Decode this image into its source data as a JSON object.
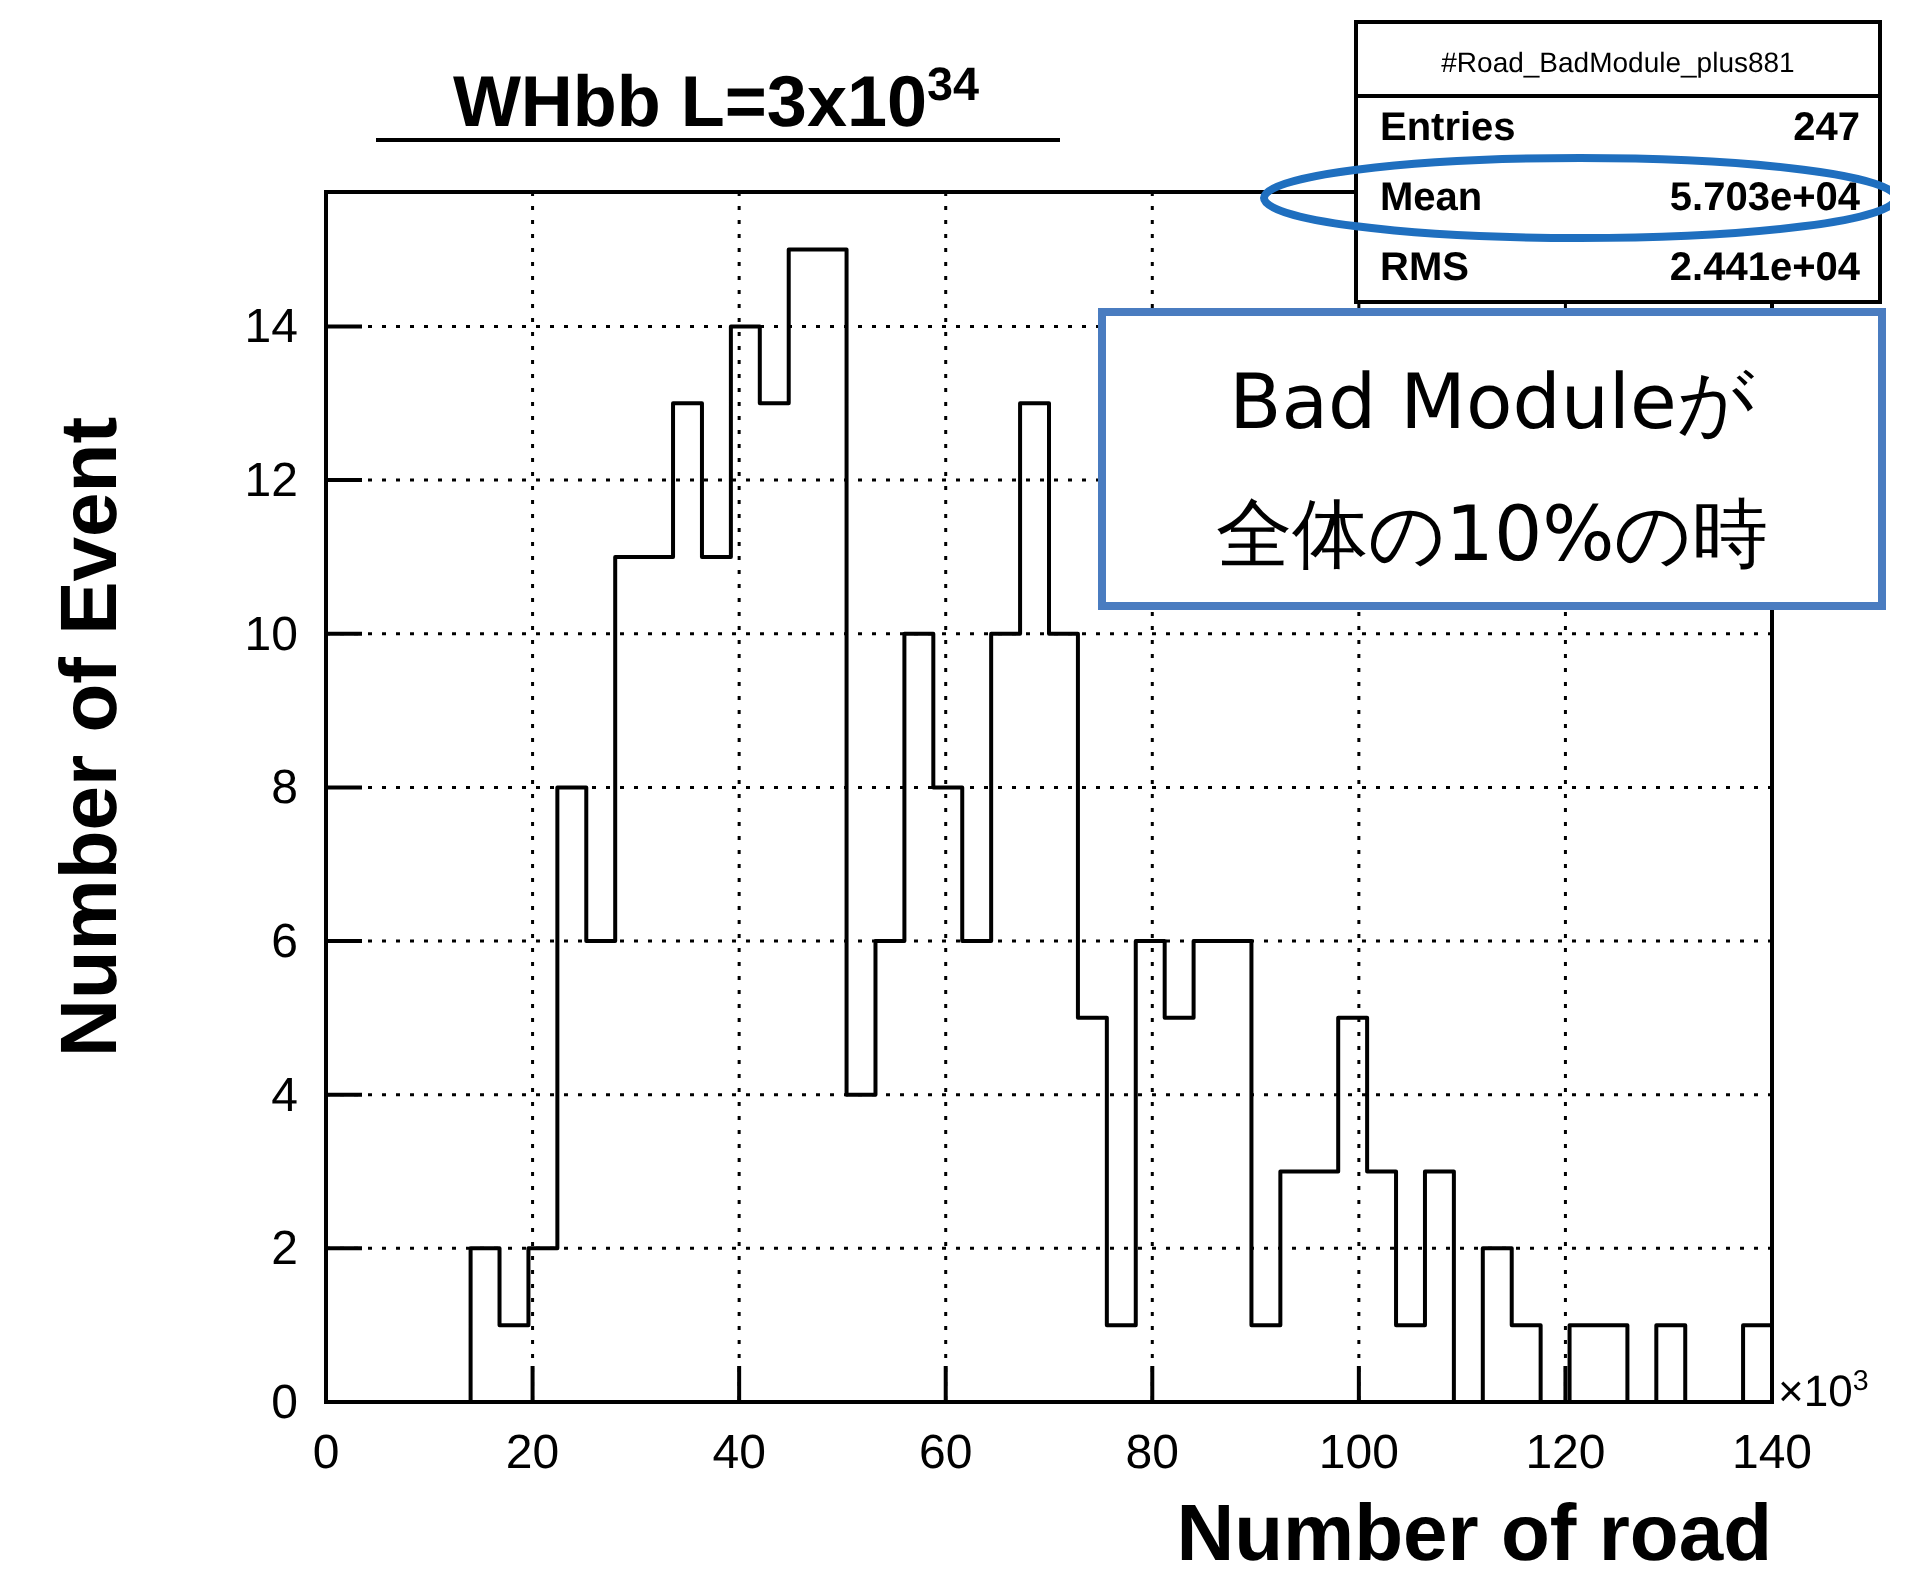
{
  "chart_data": {
    "type": "histogram",
    "title": "WHbb L=3x10$^{34}$",
    "xlabel": "Number of road",
    "ylabel": "Number of Event",
    "bins": [
      14,
      16.8,
      19.6,
      22.4,
      25.2,
      28,
      30.8,
      33.6,
      36.4,
      39.2,
      42,
      44.8,
      47.6,
      50.4,
      53.2,
      56,
      58.8,
      61.6,
      64.4,
      67.2,
      70,
      72.8,
      75.6,
      78.4,
      81.2,
      84,
      86.8,
      89.6,
      92.4,
      95.2,
      98,
      100.8,
      103.6,
      106.4,
      109.2,
      112,
      114.8,
      117.6,
      120.4,
      123.2,
      126,
      128.8,
      131.6,
      134.4,
      137.2,
      140
    ],
    "values": [
      2,
      1,
      2,
      8,
      6,
      11,
      11,
      13,
      11,
      14,
      13,
      15,
      15,
      4,
      6,
      10,
      8,
      6,
      10,
      13,
      10,
      5,
      1,
      6,
      5,
      6,
      6,
      1,
      3,
      3,
      5,
      3,
      1,
      3,
      0,
      2,
      1,
      0,
      1,
      1,
      0,
      1,
      0,
      0,
      1
    ],
    "color": "#000000",
    "xlim": [
      0,
      140
    ],
    "ylim": [
      0,
      15.75
    ],
    "xticks": [
      0,
      20,
      40,
      60,
      80,
      100,
      120,
      140
    ],
    "yticks": [
      0,
      2,
      4,
      6,
      8,
      10,
      12,
      14
    ],
    "grid": true,
    "annotations": [
      "×10$^{3}$",
      "#Road_BadModule_plus881",
      "Entries",
      "247",
      "Mean",
      "5.703e+04",
      "RMS",
      "2.441e+04",
      "Bad Moduleが",
      "全体の10%の時"
    ]
  }
}
